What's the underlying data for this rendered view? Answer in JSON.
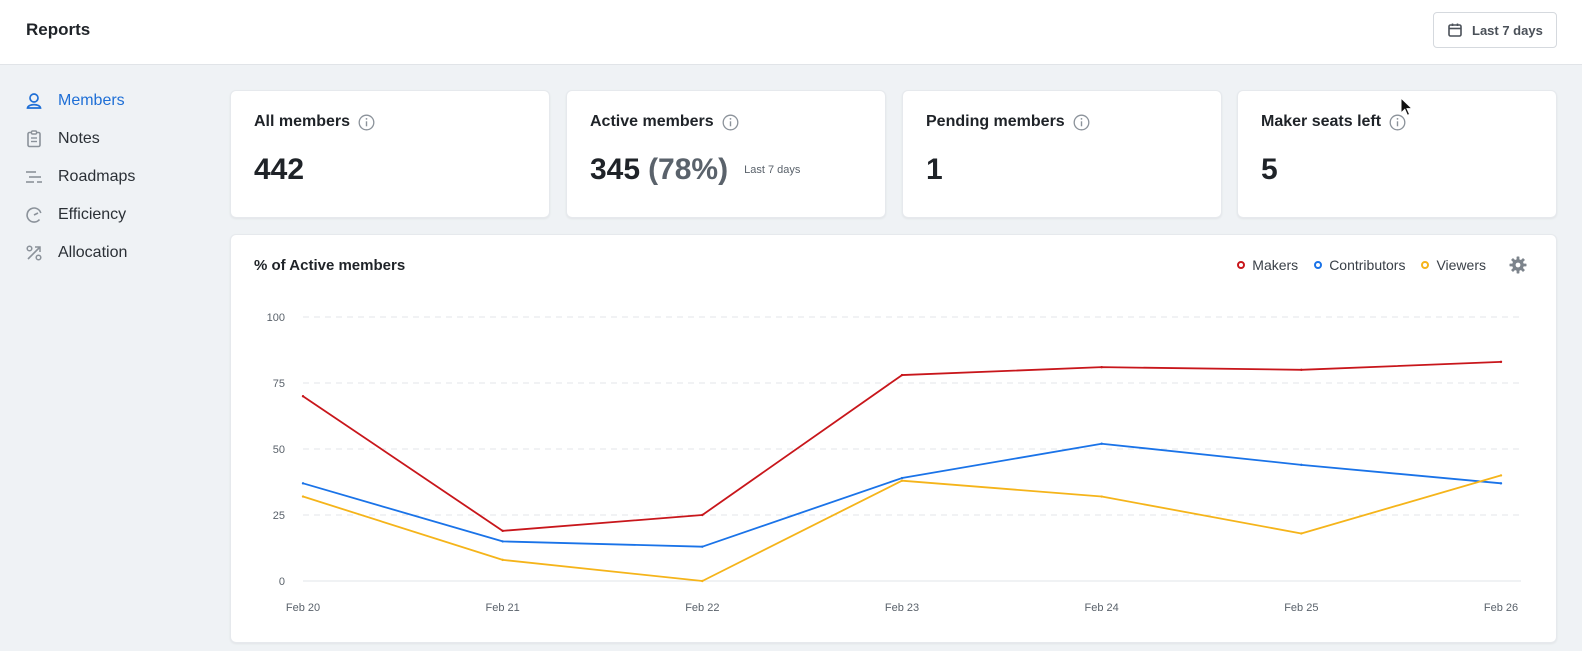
{
  "header": {
    "title": "Reports",
    "date_range_label": "Last 7 days"
  },
  "sidebar": {
    "items": [
      {
        "label": "Members",
        "icon": "members-icon",
        "active": true
      },
      {
        "label": "Notes",
        "icon": "notes-icon",
        "active": false
      },
      {
        "label": "Roadmaps",
        "icon": "roadmaps-icon",
        "active": false
      },
      {
        "label": "Efficiency",
        "icon": "efficiency-icon",
        "active": false
      },
      {
        "label": "Allocation",
        "icon": "allocation-icon",
        "active": false
      }
    ]
  },
  "stats": {
    "all_members": {
      "title": "All members",
      "value": "442"
    },
    "active_members": {
      "title": "Active members",
      "value": "345",
      "percent": "(78%)",
      "sub": "Last 7 days"
    },
    "pending_members": {
      "title": "Pending members",
      "value": "1"
    },
    "maker_seats": {
      "title": "Maker seats left",
      "value": "5"
    }
  },
  "colors": {
    "accent": "#1f6fd6",
    "makers": "#c8161b",
    "contributors": "#1a73e8",
    "viewers": "#f5b41a"
  },
  "chart_data": {
    "type": "line",
    "title": "% of Active members",
    "categories": [
      "Feb 20",
      "Feb 21",
      "Feb 22",
      "Feb 23",
      "Feb 24",
      "Feb 25",
      "Feb 26"
    ],
    "series": [
      {
        "name": "Makers",
        "values": [
          70,
          19,
          25,
          78,
          81,
          80,
          83
        ]
      },
      {
        "name": "Contributors",
        "values": [
          37,
          15,
          13,
          39,
          52,
          44,
          37
        ]
      },
      {
        "name": "Viewers",
        "values": [
          32,
          8,
          0,
          38,
          32,
          18,
          40
        ]
      }
    ],
    "yticks": [
      0,
      25,
      50,
      75,
      100
    ],
    "ylim": [
      0,
      100
    ],
    "legend_position": "top-right",
    "grid": true
  }
}
